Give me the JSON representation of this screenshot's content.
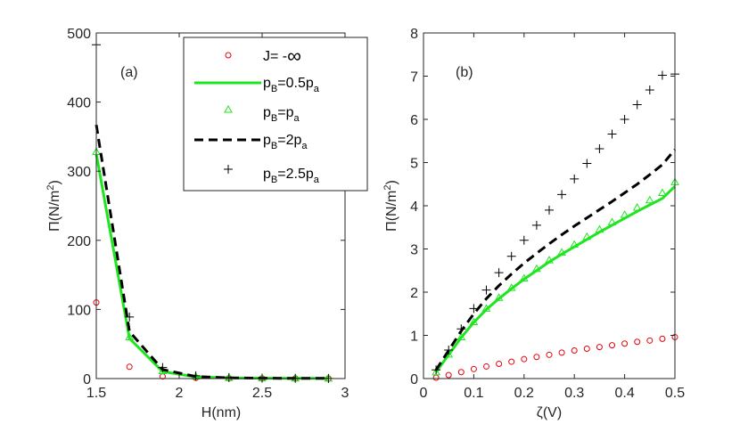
{
  "colors": {
    "red": "#e8000b",
    "green": "#1ee61e",
    "black": "#000000",
    "axis": "#262626"
  },
  "chart_data": [
    {
      "panel": "(a)",
      "type": "line",
      "xlabel": "H(nm)",
      "ylabel": "Π(N/m²)",
      "ylabel_base": "Π(N/m",
      "ylabel_sup": "2",
      "ylabel_close": ")",
      "xlim": [
        1.5,
        3
      ],
      "ylim": [
        0,
        500
      ],
      "xticks": [
        1.5,
        2,
        2.5,
        3
      ],
      "xtick_labels": [
        "1.5",
        "2",
        "2.5",
        "3"
      ],
      "yticks": [
        0,
        100,
        200,
        300,
        400,
        500
      ],
      "ytick_labels": [
        "0",
        "100",
        "200",
        "300",
        "400",
        "500"
      ],
      "x": [
        1.5,
        1.7,
        1.9,
        2.1,
        2.3,
        2.5,
        2.7,
        2.9
      ],
      "series": [
        {
          "name": "J= -∞",
          "style": "circle-red",
          "values": [
            110,
            17,
            3,
            1,
            0.5,
            0.3,
            0.2,
            0.1
          ]
        },
        {
          "name": "pB=0.5pa",
          "style": "line-green",
          "values": [
            325,
            58,
            10,
            2.5,
            1,
            0.5,
            0.3,
            0.2
          ]
        },
        {
          "name": "pB=pa",
          "style": "triangle-green",
          "values": [
            328,
            60,
            11,
            3,
            1,
            0.5,
            0.3,
            0.2
          ]
        },
        {
          "name": "pB=2pa",
          "style": "dash-black",
          "values": [
            367,
            68,
            13,
            3,
            1,
            0.5,
            0.3,
            0.2
          ]
        },
        {
          "name": "pB=2.5pa",
          "style": "plus-black",
          "values": [
            483,
            89,
            16,
            4,
            1.5,
            0.6,
            0.3,
            0.2
          ]
        }
      ],
      "legend": [
        {
          "base": "J= -",
          "sub1": "",
          "mid": "",
          "sub2": "",
          "symbol": "∞"
        },
        {
          "base": "p",
          "sub1": "B",
          "mid": "=0.5p",
          "sub2": "a",
          "symbol": ""
        },
        {
          "base": "p",
          "sub1": "B",
          "mid": "=p",
          "sub2": "a",
          "symbol": ""
        },
        {
          "base": "p",
          "sub1": "B",
          "mid": "=2p",
          "sub2": "a",
          "symbol": ""
        },
        {
          "base": "p",
          "sub1": "B",
          "mid": "=2.5p",
          "sub2": "a",
          "symbol": ""
        }
      ],
      "legend_location": "top-right"
    },
    {
      "panel": "(b)",
      "type": "line",
      "xlabel": "ζ(V)",
      "ylabel": "Π(N/m²)",
      "ylabel_base": "Π(N/m",
      "ylabel_sup": "2",
      "ylabel_close": ")",
      "xlim": [
        0,
        0.5
      ],
      "ylim": [
        0,
        8
      ],
      "xticks": [
        0,
        0.1,
        0.2,
        0.3,
        0.4,
        0.5
      ],
      "xtick_labels": [
        "0",
        "0.1",
        "0.2",
        "0.3",
        "0.4",
        "0.5"
      ],
      "yticks": [
        0,
        1,
        2,
        3,
        4,
        5,
        6,
        7,
        8
      ],
      "ytick_labels": [
        "0",
        "1",
        "2",
        "3",
        "4",
        "5",
        "6",
        "7",
        "8"
      ],
      "x": [
        0.025,
        0.05,
        0.075,
        0.1,
        0.125,
        0.15,
        0.175,
        0.2,
        0.225,
        0.25,
        0.275,
        0.3,
        0.325,
        0.35,
        0.375,
        0.4,
        0.425,
        0.45,
        0.475,
        0.5
      ],
      "series": [
        {
          "name": "J= -∞",
          "style": "circle-red",
          "values": [
            0.02,
            0.08,
            0.15,
            0.22,
            0.28,
            0.34,
            0.39,
            0.45,
            0.5,
            0.55,
            0.6,
            0.65,
            0.69,
            0.73,
            0.77,
            0.81,
            0.85,
            0.88,
            0.92,
            0.96
          ]
        },
        {
          "name": "pB=0.5pa",
          "style": "line-green",
          "values": [
            0.15,
            0.55,
            0.95,
            1.3,
            1.6,
            1.85,
            2.08,
            2.3,
            2.5,
            2.7,
            2.88,
            3.05,
            3.22,
            3.39,
            3.55,
            3.71,
            3.87,
            4.02,
            4.17,
            4.45
          ]
        },
        {
          "name": "pB=pa",
          "style": "triangle-green",
          "values": [
            0.15,
            0.56,
            0.96,
            1.31,
            1.62,
            1.87,
            2.1,
            2.32,
            2.54,
            2.74,
            2.92,
            3.1,
            3.28,
            3.45,
            3.62,
            3.79,
            3.96,
            4.13,
            4.3,
            4.55
          ]
        },
        {
          "name": "pB=2pa",
          "style": "dash-black",
          "values": [
            0.2,
            0.65,
            1.1,
            1.5,
            1.85,
            2.15,
            2.42,
            2.67,
            2.9,
            3.12,
            3.33,
            3.53,
            3.72,
            3.91,
            4.1,
            4.3,
            4.5,
            4.72,
            4.95,
            5.3
          ]
        },
        {
          "name": "pB=2.5pa",
          "style": "plus-black",
          "values": [
            0.2,
            0.66,
            1.15,
            1.62,
            2.05,
            2.45,
            2.83,
            3.2,
            3.55,
            3.9,
            4.26,
            4.62,
            4.98,
            5.32,
            5.66,
            6.0,
            6.34,
            6.68,
            7.02,
            7.05
          ]
        }
      ]
    }
  ]
}
